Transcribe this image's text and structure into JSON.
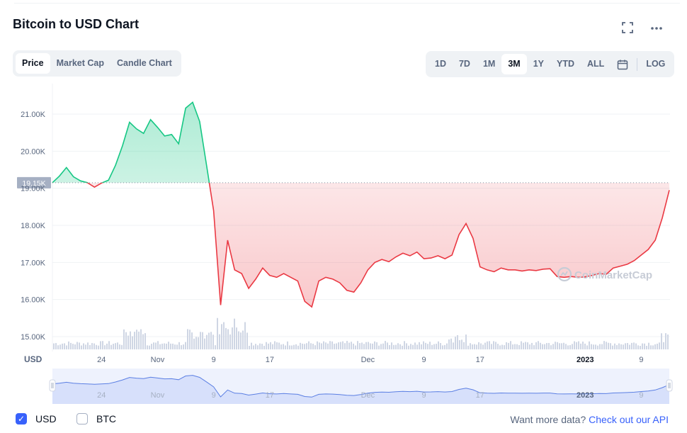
{
  "header": {
    "title": "Bitcoin to USD Chart",
    "fullscreen_icon": "fullscreen-icon",
    "more_icon": "more-icon"
  },
  "chart_tabs": [
    {
      "label": "Price",
      "active": true
    },
    {
      "label": "Market Cap",
      "active": false
    },
    {
      "label": "Candle Chart",
      "active": false
    }
  ],
  "ranges": [
    {
      "label": "1D",
      "active": false
    },
    {
      "label": "7D",
      "active": false
    },
    {
      "label": "1M",
      "active": false
    },
    {
      "label": "3M",
      "active": true
    },
    {
      "label": "1Y",
      "active": false
    },
    {
      "label": "YTD",
      "active": false
    },
    {
      "label": "ALL",
      "active": false
    }
  ],
  "calendar_icon": "calendar-icon",
  "log_label": "LOG",
  "chart_data": {
    "type": "area",
    "title": "Bitcoin to USD Chart",
    "currency_label": "USD",
    "watermark": "CoinMarketCap",
    "reference_value": 19150,
    "reference_label": "19.15K",
    "y_ticks": [
      {
        "value": 15000,
        "label": "15.00K"
      },
      {
        "value": 16000,
        "label": "16.00K"
      },
      {
        "value": 17000,
        "label": "17.00K"
      },
      {
        "value": 18000,
        "label": "18.00K"
      },
      {
        "value": 19000,
        "label": "19.00K"
      },
      {
        "value": 20000,
        "label": "20.00K"
      },
      {
        "value": 21000,
        "label": "21.00K"
      }
    ],
    "ylim": [
      14900,
      21600
    ],
    "x_range": [
      "2022-10-17",
      "2023-01-13"
    ],
    "x_ticks": [
      {
        "x": "2022-10-24",
        "label": "24",
        "bold": false
      },
      {
        "x": "2022-11-01",
        "label": "Nov",
        "bold": false
      },
      {
        "x": "2022-11-09",
        "label": "9",
        "bold": false
      },
      {
        "x": "2022-11-17",
        "label": "17",
        "bold": false
      },
      {
        "x": "2022-12-01",
        "label": "Dec",
        "bold": false
      },
      {
        "x": "2022-12-09",
        "label": "9",
        "bold": false
      },
      {
        "x": "2022-12-17",
        "label": "17",
        "bold": false
      },
      {
        "x": "2023-01-01",
        "label": "2023",
        "bold": true
      },
      {
        "x": "2023-01-09",
        "label": "9",
        "bold": false
      }
    ],
    "grid": true,
    "series": [
      {
        "values": [
          [
            "2022-10-17",
            19150
          ],
          [
            "2022-10-18",
            19330
          ],
          [
            "2022-10-19",
            19560
          ],
          [
            "2022-10-20",
            19310
          ],
          [
            "2022-10-21",
            19200
          ],
          [
            "2022-10-22",
            19150
          ],
          [
            "2022-10-23",
            19030
          ],
          [
            "2022-10-24",
            19140
          ],
          [
            "2022-10-25",
            19220
          ],
          [
            "2022-10-26",
            19620
          ],
          [
            "2022-10-27",
            20150
          ],
          [
            "2022-10-28",
            20780
          ],
          [
            "2022-10-29",
            20600
          ],
          [
            "2022-10-30",
            20480
          ],
          [
            "2022-10-31",
            20850
          ],
          [
            "2022-11-01",
            20640
          ],
          [
            "2022-11-02",
            20410
          ],
          [
            "2022-11-03",
            20450
          ],
          [
            "2022-11-04",
            20200
          ],
          [
            "2022-11-05",
            21160
          ],
          [
            "2022-11-06",
            21320
          ],
          [
            "2022-11-07",
            20800
          ],
          [
            "2022-11-08",
            19600
          ],
          [
            "2022-11-09",
            18400
          ],
          [
            "2022-11-10",
            15850
          ],
          [
            "2022-11-11",
            17600
          ],
          [
            "2022-11-12",
            16800
          ],
          [
            "2022-11-13",
            16700
          ],
          [
            "2022-11-14",
            16300
          ],
          [
            "2022-11-15",
            16550
          ],
          [
            "2022-11-16",
            16850
          ],
          [
            "2022-11-17",
            16650
          ],
          [
            "2022-11-18",
            16600
          ],
          [
            "2022-11-19",
            16700
          ],
          [
            "2022-11-20",
            16600
          ],
          [
            "2022-11-21",
            16500
          ],
          [
            "2022-11-22",
            15950
          ],
          [
            "2022-11-23",
            15800
          ],
          [
            "2022-11-24",
            16500
          ],
          [
            "2022-11-25",
            16600
          ],
          [
            "2022-11-26",
            16550
          ],
          [
            "2022-11-27",
            16450
          ],
          [
            "2022-11-28",
            16250
          ],
          [
            "2022-11-29",
            16200
          ],
          [
            "2022-11-30",
            16450
          ],
          [
            "2022-12-01",
            16800
          ],
          [
            "2022-12-02",
            17000
          ],
          [
            "2022-12-03",
            17080
          ],
          [
            "2022-12-04",
            17020
          ],
          [
            "2022-12-05",
            17150
          ],
          [
            "2022-12-06",
            17250
          ],
          [
            "2022-12-07",
            17180
          ],
          [
            "2022-12-08",
            17280
          ],
          [
            "2022-12-09",
            17100
          ],
          [
            "2022-12-10",
            17120
          ],
          [
            "2022-12-11",
            17180
          ],
          [
            "2022-12-12",
            17100
          ],
          [
            "2022-12-13",
            17200
          ],
          [
            "2022-12-14",
            17750
          ],
          [
            "2022-12-15",
            18050
          ],
          [
            "2022-12-16",
            17650
          ],
          [
            "2022-12-17",
            16880
          ],
          [
            "2022-12-18",
            16800
          ],
          [
            "2022-12-19",
            16750
          ],
          [
            "2022-12-20",
            16850
          ],
          [
            "2022-12-21",
            16800
          ],
          [
            "2022-12-22",
            16800
          ],
          [
            "2022-12-23",
            16770
          ],
          [
            "2022-12-24",
            16800
          ],
          [
            "2022-12-25",
            16780
          ],
          [
            "2022-12-26",
            16820
          ],
          [
            "2022-12-27",
            16830
          ],
          [
            "2022-12-28",
            16620
          ],
          [
            "2022-12-29",
            16600
          ],
          [
            "2022-12-30",
            16620
          ],
          [
            "2022-12-31",
            16600
          ],
          [
            "2023-01-01",
            16610
          ],
          [
            "2023-01-02",
            16650
          ],
          [
            "2023-01-03",
            16700
          ],
          [
            "2023-01-04",
            16680
          ],
          [
            "2023-01-05",
            16850
          ],
          [
            "2023-01-06",
            16900
          ],
          [
            "2023-01-07",
            16950
          ],
          [
            "2023-01-08",
            17050
          ],
          [
            "2023-01-09",
            17200
          ],
          [
            "2023-01-10",
            17350
          ],
          [
            "2023-01-11",
            17600
          ],
          [
            "2023-01-12",
            18200
          ],
          [
            "2023-01-13",
            18950
          ]
        ]
      }
    ]
  },
  "currency_options": [
    {
      "label": "USD",
      "checked": true
    },
    {
      "label": "BTC",
      "checked": false
    }
  ],
  "footer": {
    "more_data_text": "Want more data?",
    "api_link": "Check out our API"
  },
  "colors": {
    "up": "#16c784",
    "down": "#ea3943",
    "accent": "#3861fb",
    "navigator": "#5b7fe3"
  }
}
